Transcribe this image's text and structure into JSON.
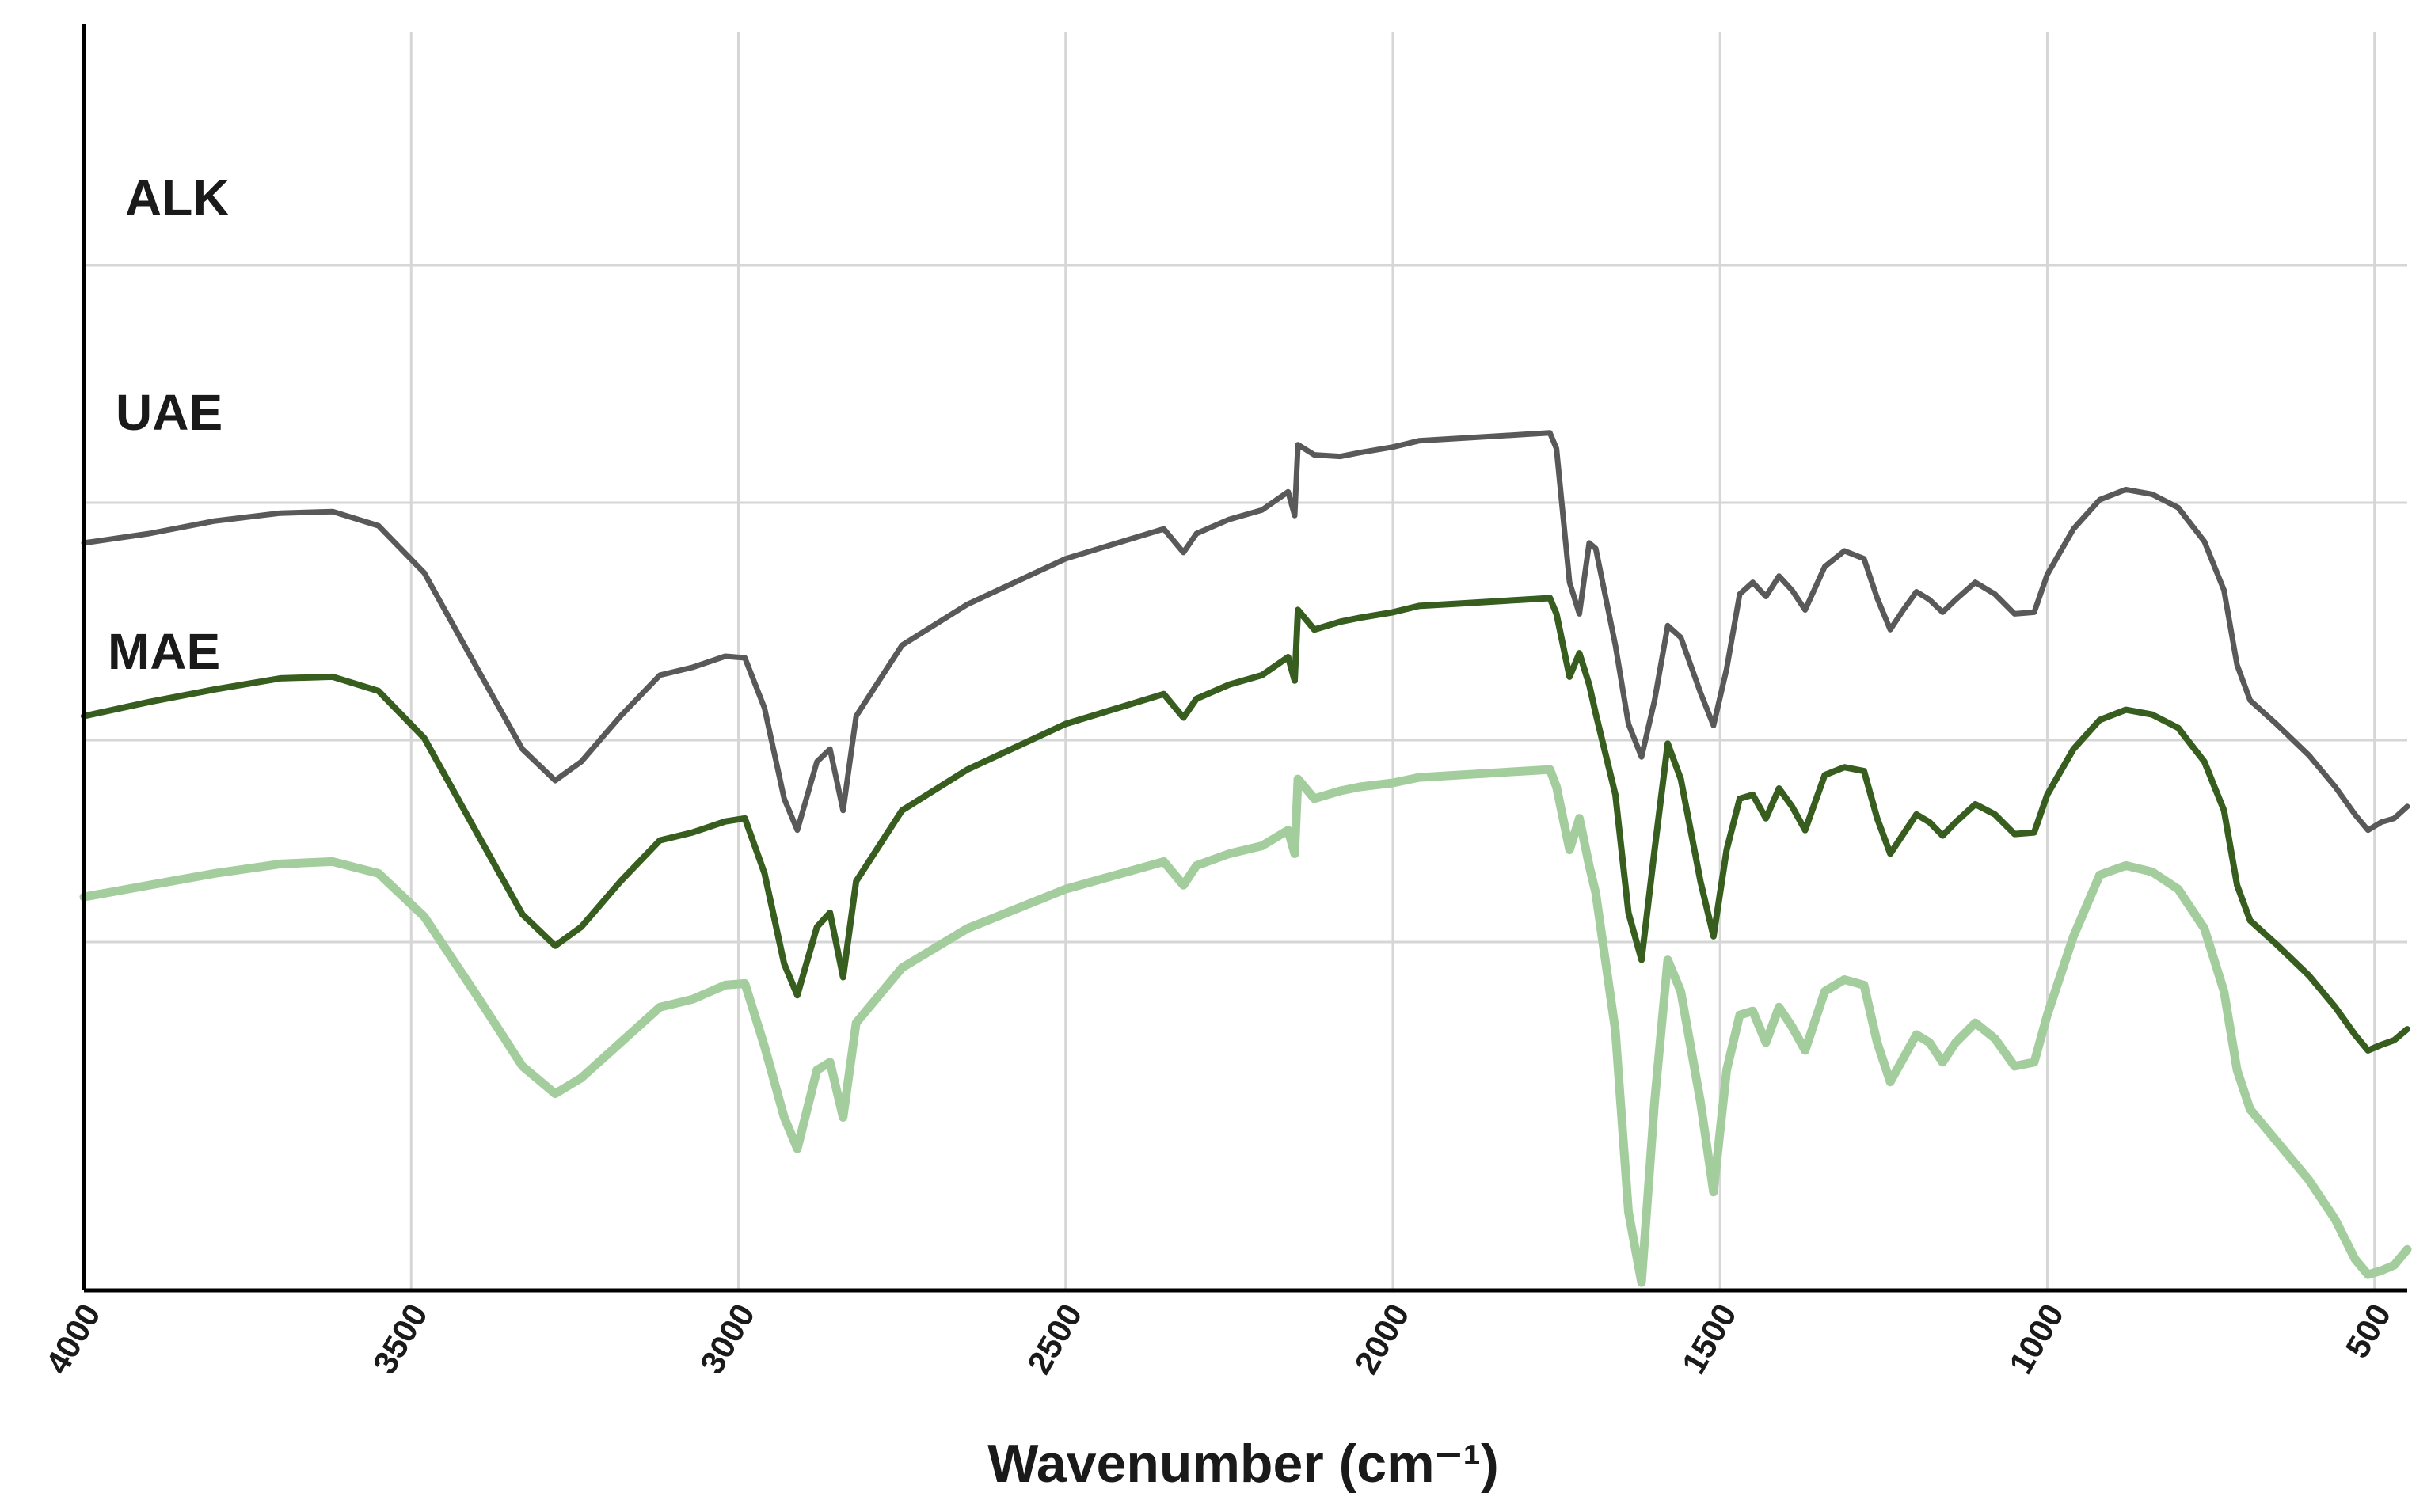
{
  "chart_data": {
    "type": "line",
    "title": "",
    "xlabel": "Wavenumber (cm⁻¹)",
    "ylabel": "",
    "xlim": [
      4000,
      450
    ],
    "x_reversed": true,
    "x_ticks": [
      4000,
      3500,
      3000,
      2500,
      2000,
      1500,
      1000,
      500
    ],
    "grid": true,
    "series": [
      {
        "name": "ALK",
        "color": "#595959",
        "points": [
          [
            4000,
            650
          ],
          [
            3900,
            662
          ],
          [
            3800,
            678
          ],
          [
            3700,
            688
          ],
          [
            3620,
            690
          ],
          [
            3550,
            672
          ],
          [
            3480,
            612
          ],
          [
            3400,
            492
          ],
          [
            3330,
            388
          ],
          [
            3280,
            348
          ],
          [
            3240,
            372
          ],
          [
            3180,
            430
          ],
          [
            3120,
            482
          ],
          [
            3070,
            492
          ],
          [
            3020,
            506
          ],
          [
            2990,
            504
          ],
          [
            2960,
            440
          ],
          [
            2930,
            325
          ],
          [
            2910,
            285
          ],
          [
            2880,
            372
          ],
          [
            2860,
            388
          ],
          [
            2840,
            310
          ],
          [
            2820,
            430
          ],
          [
            2750,
            520
          ],
          [
            2650,
            572
          ],
          [
            2500,
            630
          ],
          [
            2350,
            668
          ],
          [
            2320,
            638
          ],
          [
            2300,
            662
          ],
          [
            2250,
            680
          ],
          [
            2200,
            692
          ],
          [
            2160,
            715
          ],
          [
            2150,
            685
          ],
          [
            2145,
            775
          ],
          [
            2120,
            762
          ],
          [
            2080,
            760
          ],
          [
            2050,
            765
          ],
          [
            2000,
            772
          ],
          [
            1960,
            780
          ],
          [
            1900,
            783
          ],
          [
            1800,
            788
          ],
          [
            1760,
            790
          ],
          [
            1750,
            770
          ],
          [
            1730,
            600
          ],
          [
            1715,
            560
          ],
          [
            1700,
            650
          ],
          [
            1690,
            643
          ],
          [
            1660,
            520
          ],
          [
            1640,
            420
          ],
          [
            1620,
            378
          ],
          [
            1600,
            450
          ],
          [
            1580,
            545
          ],
          [
            1560,
            530
          ],
          [
            1530,
            460
          ],
          [
            1510,
            418
          ],
          [
            1490,
            490
          ],
          [
            1470,
            585
          ],
          [
            1450,
            600
          ],
          [
            1430,
            582
          ],
          [
            1410,
            608
          ],
          [
            1390,
            590
          ],
          [
            1370,
            565
          ],
          [
            1340,
            620
          ],
          [
            1310,
            640
          ],
          [
            1280,
            630
          ],
          [
            1260,
            580
          ],
          [
            1240,
            540
          ],
          [
            1220,
            565
          ],
          [
            1200,
            588
          ],
          [
            1180,
            578
          ],
          [
            1160,
            562
          ],
          [
            1140,
            578
          ],
          [
            1110,
            600
          ],
          [
            1080,
            585
          ],
          [
            1050,
            560
          ],
          [
            1020,
            562
          ],
          [
            1000,
            610
          ],
          [
            960,
            668
          ],
          [
            920,
            705
          ],
          [
            880,
            718
          ],
          [
            840,
            712
          ],
          [
            800,
            695
          ],
          [
            760,
            652
          ],
          [
            730,
            590
          ],
          [
            710,
            495
          ],
          [
            690,
            450
          ],
          [
            650,
            420
          ],
          [
            600,
            380
          ],
          [
            560,
            340
          ],
          [
            530,
            305
          ],
          [
            510,
            285
          ],
          [
            490,
            295
          ],
          [
            470,
            300
          ],
          [
            450,
            315
          ]
        ]
      },
      {
        "name": "UAE",
        "color": "#375e1e",
        "points": [
          [
            4000,
            430
          ],
          [
            3900,
            448
          ],
          [
            3800,
            464
          ],
          [
            3700,
            478
          ],
          [
            3620,
            480
          ],
          [
            3550,
            462
          ],
          [
            3480,
            402
          ],
          [
            3400,
            282
          ],
          [
            3330,
            178
          ],
          [
            3280,
            138
          ],
          [
            3240,
            162
          ],
          [
            3180,
            220
          ],
          [
            3120,
            272
          ],
          [
            3070,
            282
          ],
          [
            3020,
            296
          ],
          [
            2990,
            300
          ],
          [
            2960,
            230
          ],
          [
            2930,
            115
          ],
          [
            2910,
            75
          ],
          [
            2880,
            162
          ],
          [
            2860,
            180
          ],
          [
            2840,
            98
          ],
          [
            2820,
            220
          ],
          [
            2750,
            310
          ],
          [
            2650,
            362
          ],
          [
            2500,
            420
          ],
          [
            2350,
            458
          ],
          [
            2320,
            428
          ],
          [
            2300,
            452
          ],
          [
            2250,
            470
          ],
          [
            2200,
            482
          ],
          [
            2160,
            505
          ],
          [
            2150,
            475
          ],
          [
            2145,
            565
          ],
          [
            2120,
            540
          ],
          [
            2080,
            550
          ],
          [
            2050,
            555
          ],
          [
            2000,
            562
          ],
          [
            1960,
            570
          ],
          [
            1900,
            573
          ],
          [
            1800,
            578
          ],
          [
            1760,
            580
          ],
          [
            1750,
            560
          ],
          [
            1730,
            480
          ],
          [
            1715,
            510
          ],
          [
            1700,
            470
          ],
          [
            1690,
            433
          ],
          [
            1660,
            330
          ],
          [
            1640,
            180
          ],
          [
            1620,
            120
          ],
          [
            1600,
            260
          ],
          [
            1580,
            395
          ],
          [
            1560,
            350
          ],
          [
            1530,
            220
          ],
          [
            1510,
            150
          ],
          [
            1490,
            260
          ],
          [
            1470,
            325
          ],
          [
            1450,
            330
          ],
          [
            1430,
            300
          ],
          [
            1410,
            338
          ],
          [
            1390,
            315
          ],
          [
            1370,
            285
          ],
          [
            1340,
            355
          ],
          [
            1310,
            365
          ],
          [
            1280,
            360
          ],
          [
            1260,
            300
          ],
          [
            1240,
            255
          ],
          [
            1220,
            280
          ],
          [
            1200,
            305
          ],
          [
            1180,
            295
          ],
          [
            1160,
            278
          ],
          [
            1140,
            295
          ],
          [
            1110,
            318
          ],
          [
            1080,
            305
          ],
          [
            1050,
            280
          ],
          [
            1020,
            282
          ],
          [
            1000,
            330
          ],
          [
            960,
            388
          ],
          [
            920,
            425
          ],
          [
            880,
            438
          ],
          [
            840,
            432
          ],
          [
            800,
            415
          ],
          [
            760,
            372
          ],
          [
            730,
            310
          ],
          [
            710,
            215
          ],
          [
            690,
            170
          ],
          [
            650,
            140
          ],
          [
            600,
            100
          ],
          [
            560,
            60
          ],
          [
            530,
            25
          ],
          [
            510,
            5
          ],
          [
            490,
            12
          ],
          [
            470,
            18
          ],
          [
            450,
            32
          ]
        ]
      },
      {
        "name": "MAE",
        "color": "#a3cd9d",
        "points": [
          [
            4000,
            200
          ],
          [
            3900,
            215
          ],
          [
            3800,
            230
          ],
          [
            3700,
            242
          ],
          [
            3620,
            245
          ],
          [
            3550,
            230
          ],
          [
            3480,
            175
          ],
          [
            3400,
            75
          ],
          [
            3330,
            -15
          ],
          [
            3280,
            -50
          ],
          [
            3240,
            -30
          ],
          [
            3180,
            15
          ],
          [
            3120,
            60
          ],
          [
            3070,
            70
          ],
          [
            3020,
            88
          ],
          [
            2990,
            90
          ],
          [
            2960,
            10
          ],
          [
            2930,
            -80
          ],
          [
            2910,
            -120
          ],
          [
            2880,
            -20
          ],
          [
            2860,
            -10
          ],
          [
            2840,
            -80
          ],
          [
            2820,
            40
          ],
          [
            2750,
            110
          ],
          [
            2650,
            160
          ],
          [
            2500,
            210
          ],
          [
            2350,
            245
          ],
          [
            2320,
            215
          ],
          [
            2300,
            240
          ],
          [
            2250,
            255
          ],
          [
            2200,
            265
          ],
          [
            2160,
            285
          ],
          [
            2150,
            255
          ],
          [
            2145,
            350
          ],
          [
            2120,
            325
          ],
          [
            2080,
            335
          ],
          [
            2050,
            340
          ],
          [
            2000,
            345
          ],
          [
            1960,
            352
          ],
          [
            1900,
            355
          ],
          [
            1800,
            360
          ],
          [
            1760,
            362
          ],
          [
            1750,
            340
          ],
          [
            1730,
            260
          ],
          [
            1715,
            300
          ],
          [
            1700,
            240
          ],
          [
            1690,
            205
          ],
          [
            1660,
            30
          ],
          [
            1640,
            -200
          ],
          [
            1620,
            -290
          ],
          [
            1600,
            -60
          ],
          [
            1580,
            120
          ],
          [
            1560,
            80
          ],
          [
            1530,
            -60
          ],
          [
            1510,
            -175
          ],
          [
            1490,
            -20
          ],
          [
            1470,
            50
          ],
          [
            1450,
            55
          ],
          [
            1430,
            15
          ],
          [
            1410,
            60
          ],
          [
            1390,
            35
          ],
          [
            1370,
            5
          ],
          [
            1340,
            80
          ],
          [
            1310,
            95
          ],
          [
            1280,
            88
          ],
          [
            1260,
            15
          ],
          [
            1240,
            -35
          ],
          [
            1220,
            -5
          ],
          [
            1200,
            25
          ],
          [
            1180,
            15
          ],
          [
            1160,
            -10
          ],
          [
            1140,
            15
          ],
          [
            1110,
            40
          ],
          [
            1080,
            20
          ],
          [
            1050,
            -15
          ],
          [
            1020,
            -10
          ],
          [
            1000,
            50
          ],
          [
            960,
            150
          ],
          [
            920,
            228
          ],
          [
            880,
            240
          ],
          [
            840,
            232
          ],
          [
            800,
            210
          ],
          [
            760,
            160
          ],
          [
            730,
            80
          ],
          [
            710,
            -20
          ],
          [
            690,
            -70
          ],
          [
            650,
            -110
          ],
          [
            600,
            -160
          ],
          [
            560,
            -210
          ],
          [
            530,
            -260
          ],
          [
            510,
            -280
          ],
          [
            490,
            -275
          ],
          [
            470,
            -268
          ],
          [
            450,
            -248
          ]
        ]
      }
    ]
  }
}
